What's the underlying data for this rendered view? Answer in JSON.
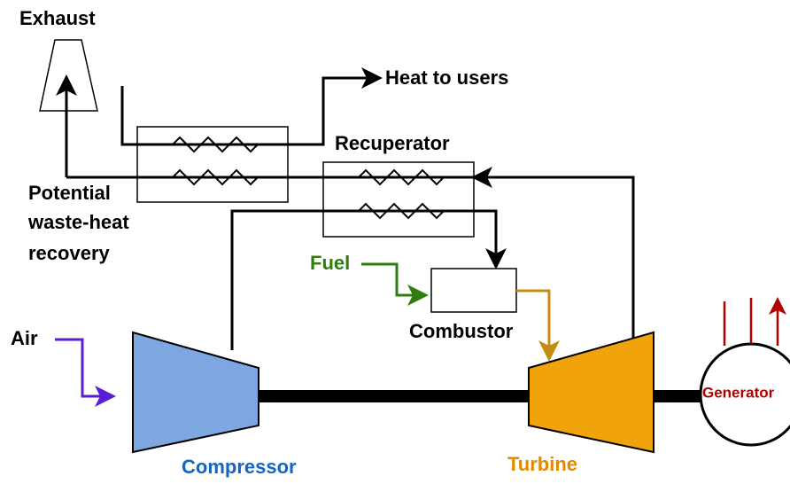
{
  "labels": {
    "exhaust": "Exhaust",
    "heat_to_users": "Heat to users",
    "recuperator": "Recuperator",
    "waste_heat": [
      "Potential",
      "waste-heat",
      "recovery"
    ],
    "fuel": "Fuel",
    "combustor": "Combustor",
    "air": "Air",
    "compressor": "Compressor",
    "turbine": "Turbine",
    "generator": "Generator"
  }
}
